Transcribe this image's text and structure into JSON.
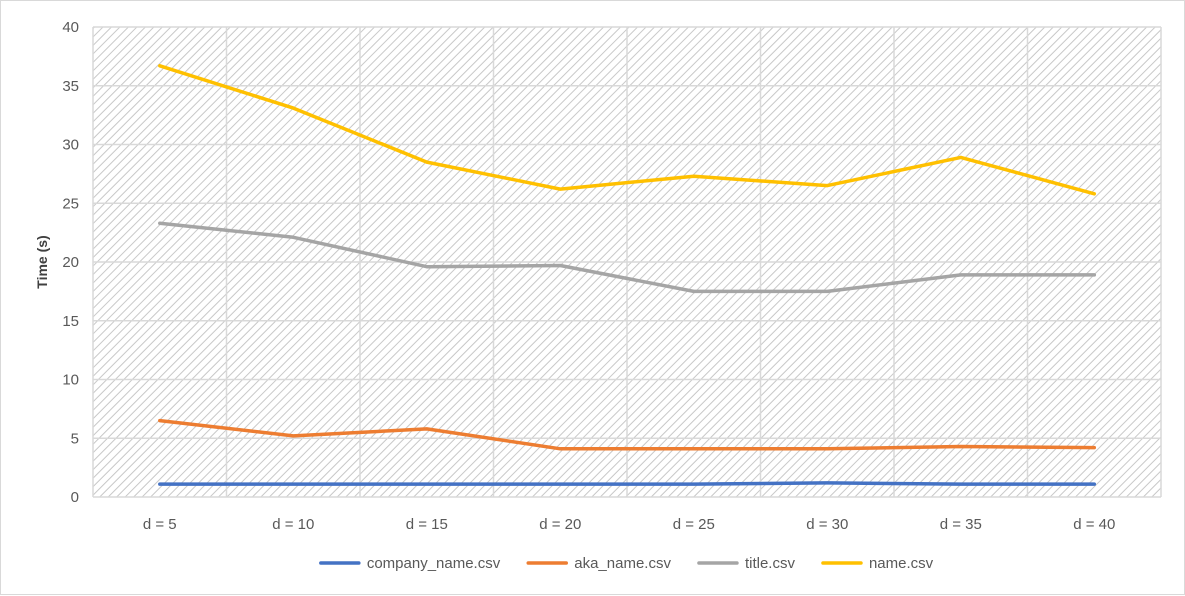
{
  "chart_data": {
    "type": "line",
    "title": "",
    "xlabel": "",
    "ylabel": "Time (s)",
    "ylim": [
      0,
      40
    ],
    "yticks": [
      0,
      5,
      10,
      15,
      20,
      25,
      30,
      35,
      40
    ],
    "grid": true,
    "legend_position": "bottom",
    "categories": [
      "d = 5",
      "d = 10",
      "d = 15",
      "d = 20",
      "d = 25",
      "d = 30",
      "d = 35",
      "d = 40"
    ],
    "series": [
      {
        "name": "company_name.csv",
        "color": "#4472C4",
        "values": [
          1.1,
          1.1,
          1.1,
          1.1,
          1.1,
          1.2,
          1.1,
          1.1
        ]
      },
      {
        "name": "aka_name.csv",
        "color": "#ED7D31",
        "values": [
          6.5,
          5.2,
          5.8,
          4.1,
          4.1,
          4.1,
          4.3,
          4.2
        ]
      },
      {
        "name": "title.csv",
        "color": "#A5A5A5",
        "values": [
          23.3,
          22.1,
          19.6,
          19.7,
          17.5,
          17.5,
          18.9,
          18.9
        ]
      },
      {
        "name": "name.csv",
        "color": "#FFC000",
        "values": [
          36.7,
          33.1,
          28.5,
          26.2,
          27.3,
          26.5,
          28.9,
          25.8
        ]
      }
    ]
  }
}
